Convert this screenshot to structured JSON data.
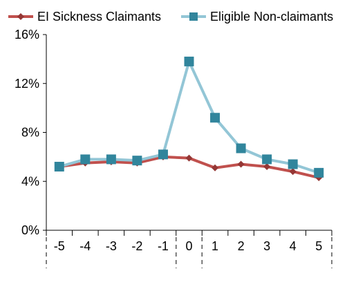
{
  "chart_data": {
    "type": "line",
    "title": "",
    "xlabel": "",
    "ylabel": "",
    "categories": [
      "-5",
      "-4",
      "-3",
      "-2",
      "-1",
      "0",
      "1",
      "2",
      "3",
      "4",
      "5"
    ],
    "ylim": [
      0,
      16
    ],
    "y_ticks": [
      "0%",
      "4%",
      "8%",
      "12%",
      "16%"
    ],
    "y_tick_values": [
      0,
      4,
      8,
      12,
      16
    ],
    "grid": false,
    "legend_position": "top",
    "series": [
      {
        "name": "EI Sickness Claimants",
        "color": "#c0504d",
        "marker": "diamond",
        "marker_color": "#953735",
        "values": [
          5.2,
          5.5,
          5.6,
          5.5,
          6.0,
          5.9,
          5.1,
          5.4,
          5.2,
          4.8,
          4.3
        ]
      },
      {
        "name": "Eligible Non-claimants",
        "color": "#93c6d6",
        "marker": "square",
        "marker_color": "#31859c",
        "values": [
          5.2,
          5.8,
          5.8,
          5.7,
          6.2,
          13.8,
          9.2,
          6.7,
          5.8,
          5.4,
          4.7
        ]
      }
    ]
  }
}
